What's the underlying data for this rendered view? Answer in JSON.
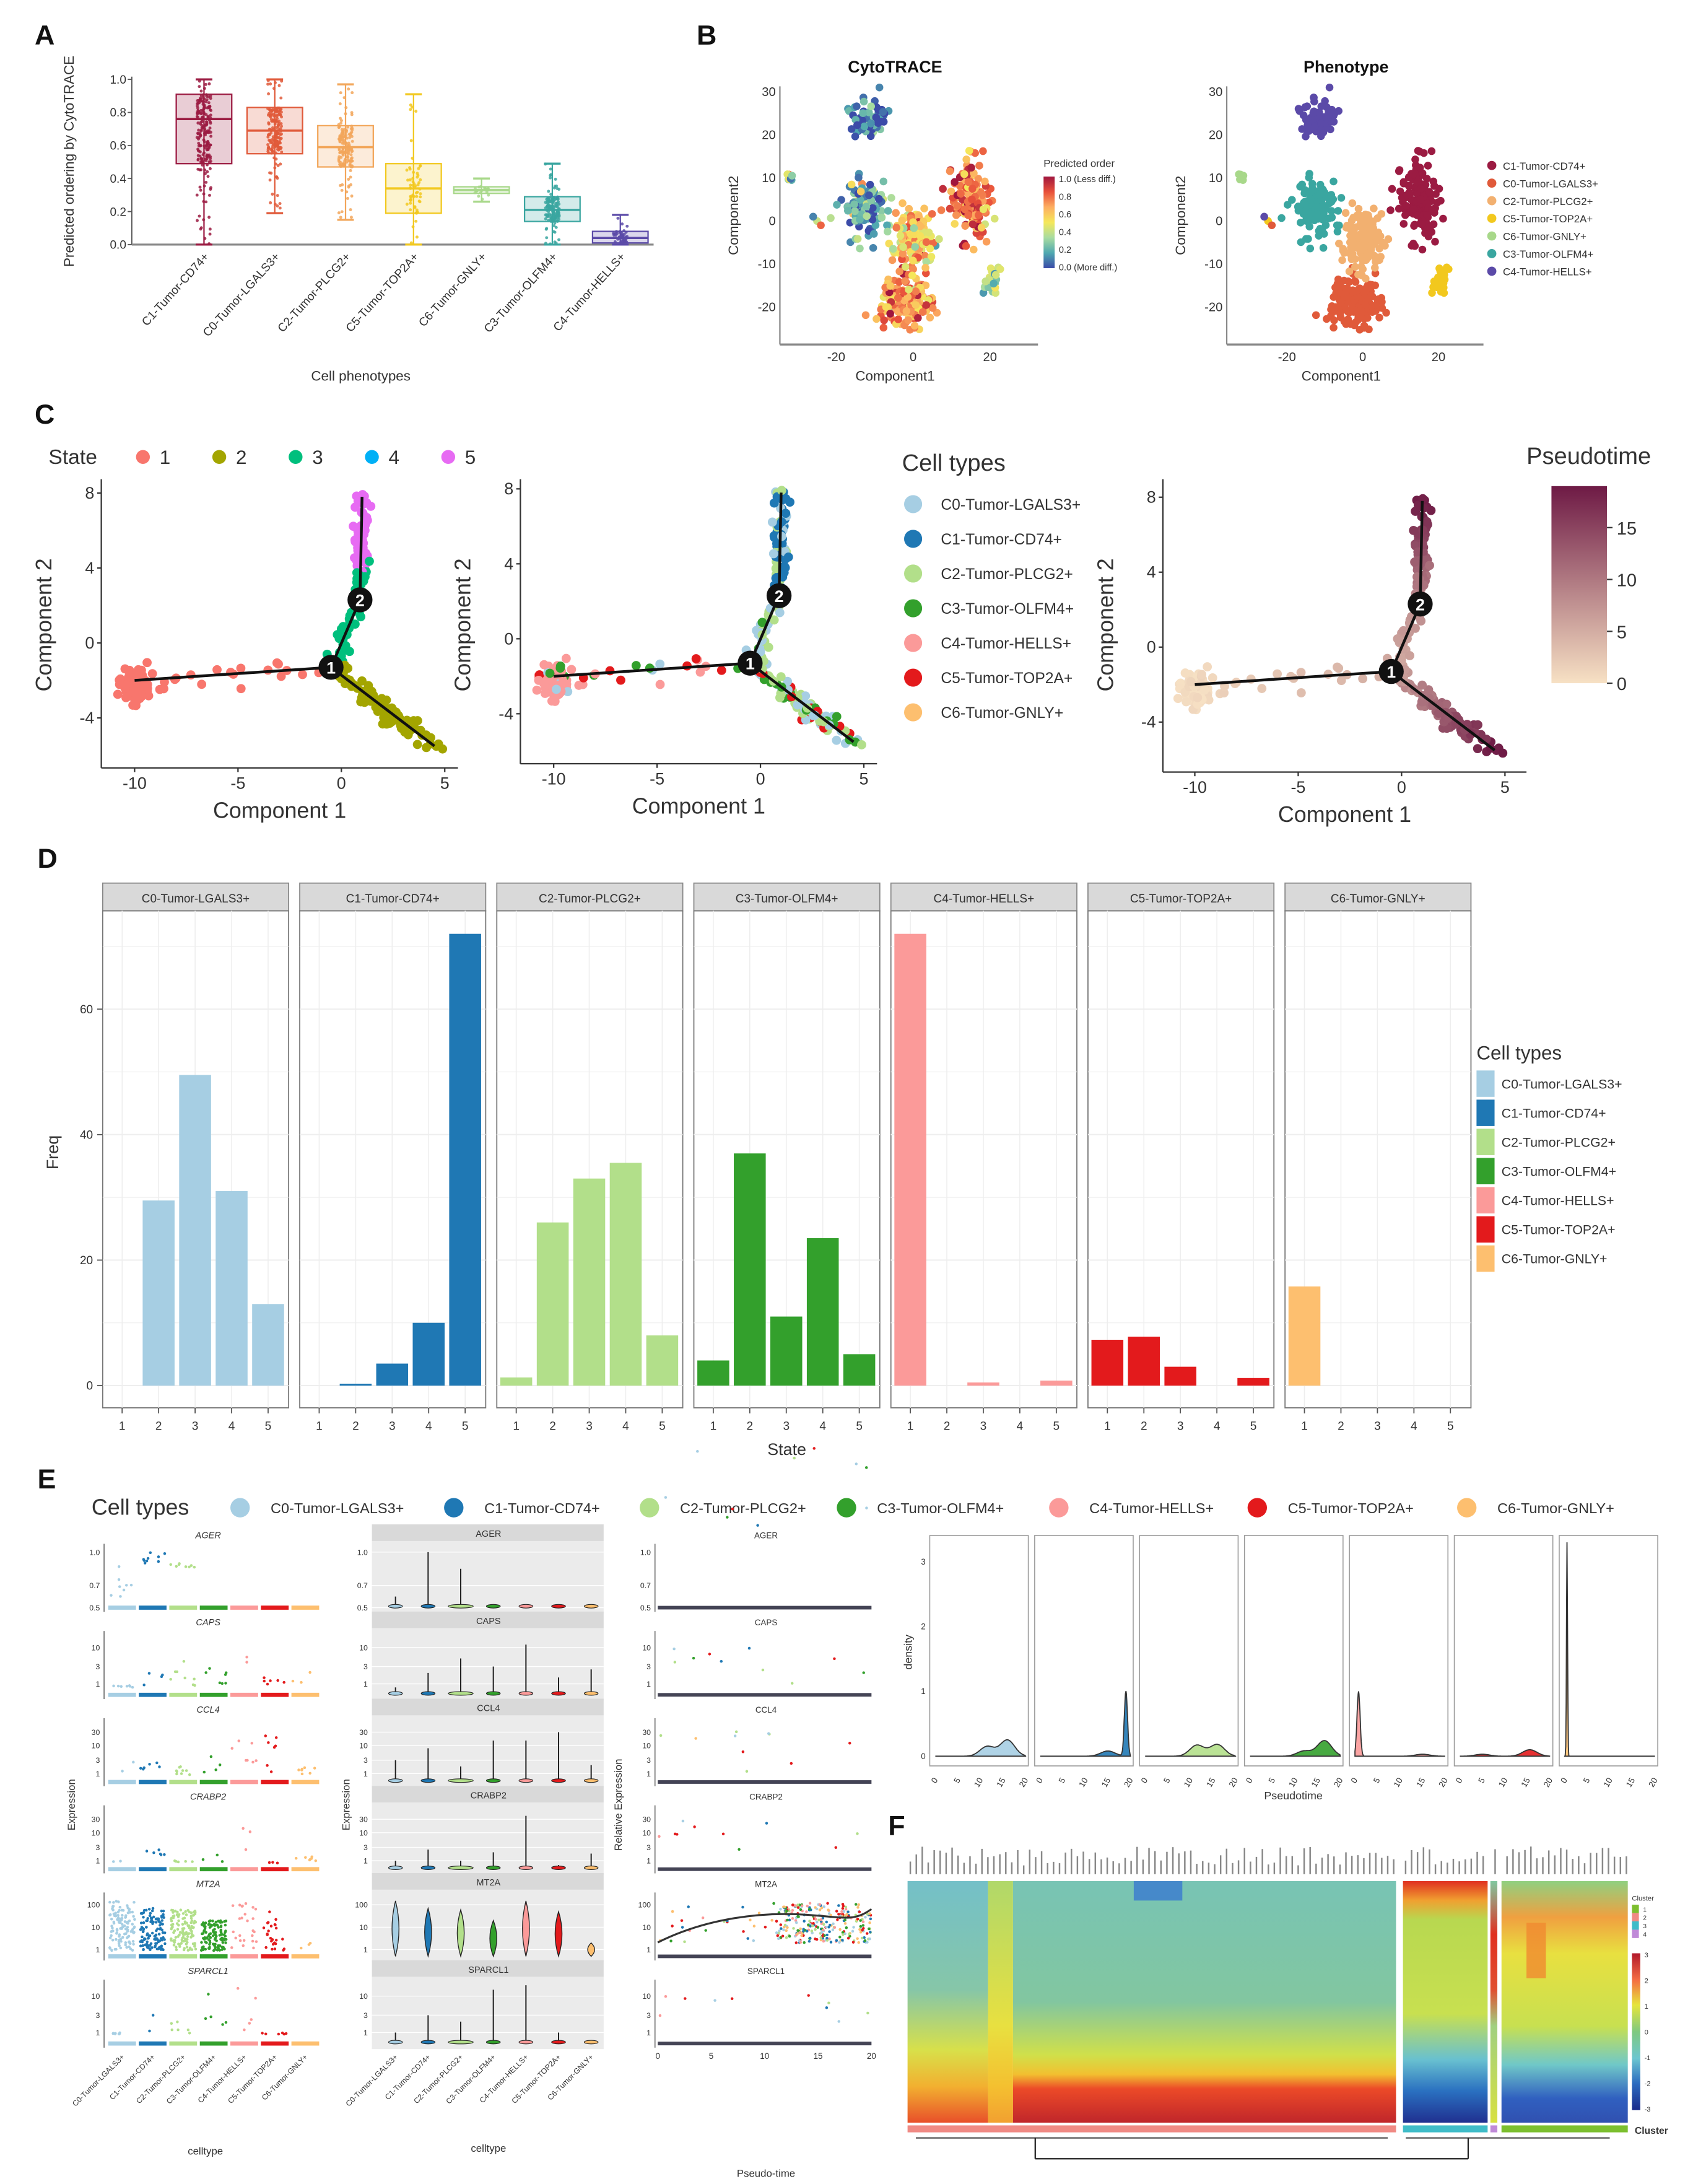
{
  "panel_labels": [
    "A",
    "B",
    "C",
    "D",
    "E",
    "F"
  ],
  "chart_data": [
    {
      "id": "A",
      "type": "box",
      "xlabel": "Cell phenotypes",
      "ylabel": "Predicted ordering by CytoTRACE",
      "ylim": [
        0,
        1
      ],
      "yticks": [
        "0.0",
        "0.2",
        "0.4",
        "0.6",
        "0.8",
        "1.0"
      ],
      "categories": [
        "C1-Tumor-CD74+",
        "C0-Tumor-LGALS3+",
        "C2-Tumor-PLCG2+",
        "C5-Tumor-TOP2A+",
        "C6-Tumor-GNLY+",
        "C3-Tumor-OLFM4+",
        "C4-Tumor-HELLS+"
      ],
      "colors": [
        "#9b1b42",
        "#e05a3a",
        "#f2a65a",
        "#f2c81e",
        "#a8d88a",
        "#3aa6a0",
        "#5b4aa8"
      ],
      "boxes": [
        {
          "q1": 0.49,
          "median": 0.76,
          "q3": 0.91,
          "whisker_low": 0.0,
          "whisker_high": 1.0
        },
        {
          "q1": 0.55,
          "median": 0.69,
          "q3": 0.83,
          "whisker_low": 0.19,
          "whisker_high": 1.0
        },
        {
          "q1": 0.47,
          "median": 0.59,
          "q3": 0.72,
          "whisker_low": 0.15,
          "whisker_high": 0.97
        },
        {
          "q1": 0.19,
          "median": 0.34,
          "q3": 0.49,
          "whisker_low": 0.0,
          "whisker_high": 0.91
        },
        {
          "q1": 0.31,
          "median": 0.33,
          "q3": 0.35,
          "whisker_low": 0.26,
          "whisker_high": 0.4
        },
        {
          "q1": 0.14,
          "median": 0.21,
          "q3": 0.29,
          "whisker_low": 0.0,
          "whisker_high": 0.49
        },
        {
          "q1": 0.01,
          "median": 0.04,
          "q3": 0.08,
          "whisker_low": 0.0,
          "whisker_high": 0.18
        }
      ]
    },
    {
      "id": "B",
      "type": "scatter",
      "subplots": [
        {
          "title": "CytoTRACE",
          "xlabel": "Component1",
          "ylabel": "Component2",
          "color_by": "predicted order"
        },
        {
          "title": "Phenotype",
          "xlabel": "Component1",
          "ylabel": "Component2",
          "color_by": "phenotype"
        }
      ],
      "xticks": [
        "-20",
        "0",
        "20"
      ],
      "yticks": [
        "-20",
        "-10",
        "0",
        "10",
        "20",
        "30"
      ],
      "colorbar": {
        "title": "Predicted order",
        "labels": [
          "1.0 (Less diff.)",
          "0.8",
          "0.6",
          "0.4",
          "0.2",
          "0.0 (More diff.)"
        ],
        "palette": [
          "#3b4ba8",
          "#4fa8b0",
          "#a8dca0",
          "#f5e85a",
          "#fdae61",
          "#e8503a",
          "#a0163e"
        ]
      },
      "legend": [
        "C1-Tumor-CD74+",
        "C0-Tumor-LGALS3+",
        "C2-Tumor-PLCG2+",
        "C5-Tumor-TOP2A+",
        "C6-Tumor-GNLY+",
        "C3-Tumor-OLFM4+",
        "C4-Tumor-HELLS+"
      ],
      "colors": [
        "#9b1b42",
        "#e05a3a",
        "#f2b070",
        "#f2c81e",
        "#a8d88a",
        "#3aa6a0",
        "#5b4aa8"
      ],
      "clusters": [
        {
          "phenotype": 0,
          "center": [
            15,
            5
          ],
          "spread": [
            4,
            8
          ],
          "n": 150,
          "order": 0.76
        },
        {
          "phenotype": 1,
          "center": [
            -2,
            -19
          ],
          "spread": [
            6,
            5
          ],
          "n": 160,
          "order": 0.69
        },
        {
          "phenotype": 2,
          "center": [
            0,
            -4
          ],
          "spread": [
            4.5,
            6
          ],
          "n": 150,
          "order": 0.59
        },
        {
          "phenotype": 3,
          "center": [
            21,
            -14
          ],
          "spread": [
            1.4,
            2.4
          ],
          "n": 28,
          "order": 0.34
        },
        {
          "phenotype": 4,
          "center": [
            -32,
            10
          ],
          "spread": [
            0.8,
            0.8
          ],
          "n": 8,
          "order": 0.33
        },
        {
          "phenotype": 5,
          "center": [
            -12,
            3
          ],
          "spread": [
            4.5,
            6
          ],
          "n": 120,
          "order": 0.21
        },
        {
          "phenotype": 6,
          "center": [
            -12,
            24
          ],
          "spread": [
            4,
            4
          ],
          "n": 60,
          "order": 0.05
        }
      ]
    },
    {
      "id": "C",
      "type": "scatter",
      "xlabel": "Component 1",
      "ylabel": "Component 2",
      "xticks": [
        "-10",
        "-5",
        "0",
        "5"
      ],
      "yticks": [
        "-4",
        "0",
        "4",
        "8"
      ],
      "state_legend": {
        "title": "State",
        "items": [
          "1",
          "2",
          "3",
          "4",
          "5"
        ],
        "colors": [
          "#f8766d",
          "#a3a500",
          "#00bf7d",
          "#00b0f6",
          "#e76bf3"
        ]
      },
      "celltype_legend": {
        "title": "Cell types",
        "items": [
          "C0-Tumor-LGALS3+",
          "C1-Tumor-CD74+",
          "C2-Tumor-PLCG2+",
          "C3-Tumor-OLFM4+",
          "C4-Tumor-HELLS+",
          "C5-Tumor-TOP2A+",
          "C6-Tumor-GNLY+"
        ],
        "colors": [
          "#a6cee3",
          "#1f78b4",
          "#b2df8a",
          "#33a02c",
          "#fb9a99",
          "#e31a1c",
          "#fdbf6f"
        ]
      },
      "colorbar": {
        "title": "Pseudotime",
        "ticks": [
          "0",
          "5",
          "10",
          "15"
        ],
        "range": [
          0,
          19
        ],
        "colors": [
          "#f7e1c4",
          "#6e1a45"
        ]
      },
      "branch_points": [
        {
          "label": "1",
          "x": -0.5,
          "y": -1.3
        },
        {
          "label": "2",
          "x": 0.9,
          "y": 2.3
        }
      ],
      "branch_ends": [
        [
          -10,
          -2
        ],
        [
          1,
          7.8
        ],
        [
          4.5,
          -5.5
        ]
      ]
    },
    {
      "id": "D",
      "type": "bar",
      "xlabel": "State",
      "ylabel": "Freq",
      "yticks": [
        "0",
        "20",
        "40",
        "60"
      ],
      "categories": [
        "1",
        "2",
        "3",
        "4",
        "5"
      ],
      "legend_title": "Cell types",
      "facets": [
        {
          "title": "C0-Tumor-LGALS3+",
          "color": "#a6cee3",
          "values": [
            0,
            29.5,
            49.5,
            31,
            13
          ]
        },
        {
          "title": "C1-Tumor-CD74+",
          "color": "#1f78b4",
          "values": [
            0,
            0.3,
            3.5,
            10,
            72
          ]
        },
        {
          "title": "C2-Tumor-PLCG2+",
          "color": "#b2df8a",
          "values": [
            1.3,
            26,
            33,
            35.5,
            8
          ]
        },
        {
          "title": "C3-Tumor-OLFM4+",
          "color": "#33a02c",
          "values": [
            4,
            37,
            11,
            23.5,
            5
          ]
        },
        {
          "title": "C4-Tumor-HELLS+",
          "color": "#fb9a99",
          "values": [
            72,
            0,
            0.5,
            0,
            0.8
          ]
        },
        {
          "title": "C5-Tumor-TOP2A+",
          "color": "#e31a1c",
          "values": [
            7.3,
            7.8,
            3,
            0,
            1.2
          ]
        },
        {
          "title": "C6-Tumor-GNLY+",
          "color": "#fdbf6f",
          "values": [
            15.8,
            0,
            0,
            0,
            0
          ]
        }
      ]
    },
    {
      "id": "E",
      "type": "scatter",
      "legend_title": "Cell types",
      "celltypes": [
        "C0-Tumor-LGALS3+",
        "C1-Tumor-CD74+",
        "C2-Tumor-PLCG2+",
        "C3-Tumor-OLFM4+",
        "C4-Tumor-HELLS+",
        "C5-Tumor-TOP2A+",
        "C6-Tumor-GNLY+"
      ],
      "colors": [
        "#a6cee3",
        "#1f78b4",
        "#b2df8a",
        "#33a02c",
        "#fb9a99",
        "#e31a1c",
        "#fdbf6f"
      ],
      "xlabel_left": "celltype",
      "xlabel_mid": "celltype",
      "xlabel_right": "Pseudo-time",
      "ylabel_left": "Expression",
      "ylabel_mid": "Expression",
      "ylabel_right": "Relative Expression",
      "xticks_right": [
        "0",
        "5",
        "10",
        "15",
        "20"
      ],
      "genes": [
        {
          "name": "AGER",
          "scale": "linear",
          "ticks": [
            "0.5",
            "0.7",
            "1.0"
          ],
          "max_expression": [
            0.6,
            1.0,
            0.85,
            0.5,
            0.5,
            0.5,
            0.5
          ]
        },
        {
          "name": "CAPS",
          "scale": "log",
          "ticks": [
            "1",
            "3",
            "10"
          ],
          "max_expression": [
            0.8,
            2,
            5,
            3,
            12,
            1.5,
            2.5
          ]
        },
        {
          "name": "CCL4",
          "scale": "log",
          "ticks": [
            "1",
            "3",
            "10",
            "30"
          ],
          "max_expression": [
            3,
            8,
            1.8,
            15,
            15,
            30,
            2
          ]
        },
        {
          "name": "CRABP2",
          "scale": "log",
          "ticks": [
            "1",
            "3",
            "10",
            "30"
          ],
          "max_expression": [
            1,
            2.5,
            1,
            2,
            40,
            0.7,
            1.8
          ]
        },
        {
          "name": "MT2A",
          "scale": "log",
          "ticks": [
            "1",
            "10",
            "100"
          ],
          "max_expression": [
            150,
            70,
            60,
            20,
            150,
            50,
            2
          ]
        },
        {
          "name": "SPARCL1",
          "scale": "log",
          "ticks": [
            "1",
            "3",
            "10"
          ],
          "max_expression": [
            1,
            3,
            2,
            15,
            20,
            1,
            0.5
          ]
        }
      ]
    },
    {
      "id": "E-density",
      "type": "area",
      "xlabel": "Pseudotime",
      "ylabel": "density",
      "yticks": [
        "0",
        "1",
        "2",
        "3"
      ],
      "xticks": [
        "0",
        "5",
        "10",
        "15",
        "20"
      ],
      "colors": [
        "#a6cee3",
        "#1f78b4",
        "#b2df8a",
        "#33a02c",
        "#fb9a99",
        "#e31a1c",
        "#fdbf6f"
      ],
      "facets": [
        {
          "peaks": [
            [
              11.5,
              0.15
            ],
            [
              16,
              0.25
            ]
          ]
        },
        {
          "peaks": [
            [
              19,
              1.0
            ],
            [
              15,
              0.08
            ]
          ]
        },
        {
          "peaks": [
            [
              11.5,
              0.17
            ],
            [
              16,
              0.18
            ]
          ]
        },
        {
          "peaks": [
            [
              12,
              0.08
            ],
            [
              16.5,
              0.24
            ]
          ]
        },
        {
          "peaks": [
            [
              0.8,
              1.0
            ],
            [
              15,
              0.03
            ]
          ]
        },
        {
          "peaks": [
            [
              5,
              0.03
            ],
            [
              15.5,
              0.1
            ]
          ]
        },
        {
          "peaks": [
            [
              0.5,
              3.3
            ]
          ]
        }
      ]
    },
    {
      "id": "F",
      "type": "heatmap",
      "cluster_legend": {
        "title": "Cluster",
        "items": [
          "1",
          "2",
          "3",
          "4"
        ],
        "colors": [
          "#7cbf2f",
          "#f08a84",
          "#3fbcc8",
          "#c08ad8"
        ]
      },
      "colorbar_ticks": [
        "3",
        "2",
        "1",
        "0",
        "-1",
        "-2",
        "-3"
      ],
      "column_clusters": [
        "2",
        "3",
        "4",
        "1"
      ],
      "annotation_label": "Cluster"
    }
  ]
}
